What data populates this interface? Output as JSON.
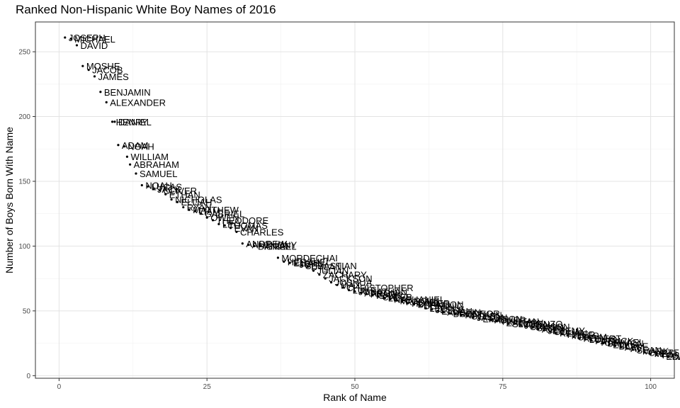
{
  "chart_data": {
    "type": "scatter",
    "title": "Ranked Non-Hispanic White Boy Names of 2016",
    "xlabel": "Rank of Name",
    "ylabel": "Number of Boys Born With Name",
    "xlim": [
      -4,
      104
    ],
    "ylim": [
      -2,
      273
    ],
    "x_ticks": [
      0,
      25,
      50,
      75,
      100
    ],
    "y_ticks": [
      0,
      50,
      100,
      150,
      200,
      250
    ],
    "grid": true,
    "legend": "none",
    "point_color": "#000000",
    "points": [
      {
        "x": 1,
        "y": 261,
        "label": "JOSEPH"
      },
      {
        "x": 2,
        "y": 260,
        "label": "MICHAEL"
      },
      {
        "x": 3,
        "y": 255,
        "label": "DAVID"
      },
      {
        "x": 4,
        "y": 239,
        "label": "MOSHE"
      },
      {
        "x": 5,
        "y": 236,
        "label": "JACOB"
      },
      {
        "x": 6,
        "y": 231,
        "label": "JAMES"
      },
      {
        "x": 7,
        "y": 219,
        "label": "BENJAMIN"
      },
      {
        "x": 8,
        "y": 211,
        "label": "ALEXANDER"
      },
      {
        "x": 9,
        "y": 196,
        "label": "HENRY"
      },
      {
        "x": 9.4,
        "y": 196,
        "label": "DANIEL"
      },
      {
        "x": 10,
        "y": 178,
        "label": "ADAM"
      },
      {
        "x": 11,
        "y": 177,
        "label": "NOAH"
      },
      {
        "x": 11.5,
        "y": 169,
        "label": "WILLIAM"
      },
      {
        "x": 12,
        "y": 163,
        "label": "ABRAHAM"
      },
      {
        "x": 13,
        "y": 156,
        "label": "SAMUEL"
      },
      {
        "x": 14,
        "y": 147,
        "label": "NOAH"
      },
      {
        "x": 15,
        "y": 146,
        "label": "LUCAS"
      },
      {
        "x": 16,
        "y": 144,
        "label": "JACK"
      },
      {
        "x": 17,
        "y": 143,
        "label": "OLIVER"
      },
      {
        "x": 18,
        "y": 140,
        "label": "ETHAN"
      },
      {
        "x": 19,
        "y": 136,
        "label": "NICHOLAS"
      },
      {
        "x": 20,
        "y": 134,
        "label": "ELIJAH"
      },
      {
        "x": 21,
        "y": 130,
        "label": "RYAN"
      },
      {
        "x": 22,
        "y": 128,
        "label": "MATTHEW"
      },
      {
        "x": 23,
        "y": 127,
        "label": "LIAM"
      },
      {
        "x": 24,
        "y": 125,
        "label": "GABRIEL"
      },
      {
        "x": 25,
        "y": 122,
        "label": "OWEN"
      },
      {
        "x": 26,
        "y": 120,
        "label": "THEODORE"
      },
      {
        "x": 27,
        "y": 117,
        "label": "LEO"
      },
      {
        "x": 28,
        "y": 116,
        "label": "THOMAS"
      },
      {
        "x": 29,
        "y": 114,
        "label": "EVAN"
      },
      {
        "x": 30,
        "y": 111,
        "label": "CHARLES"
      },
      {
        "x": 31,
        "y": 102,
        "label": "ANDREW"
      },
      {
        "x": 32,
        "y": 101,
        "label": "ANTHONY"
      },
      {
        "x": 33,
        "y": 100,
        "label": "DANIEL"
      },
      {
        "x": 34,
        "y": 100,
        "label": "ISRAEL"
      },
      {
        "x": 37,
        "y": 91,
        "label": "MORDECHAI"
      },
      {
        "x": 38,
        "y": 88,
        "label": "HERSHEL"
      },
      {
        "x": 39,
        "y": 87,
        "label": "ELIAS"
      },
      {
        "x": 40,
        "y": 86,
        "label": "JOHN"
      },
      {
        "x": 41,
        "y": 85,
        "label": "SEBASTIAN"
      },
      {
        "x": 42,
        "y": 84,
        "label": "DYLAN"
      },
      {
        "x": 43,
        "y": 81,
        "label": "JULIAN"
      },
      {
        "x": 44,
        "y": 78,
        "label": "ZACHARY"
      },
      {
        "x": 45,
        "y": 75,
        "label": "JACKSON"
      },
      {
        "x": 46,
        "y": 72,
        "label": "JOSHUA"
      },
      {
        "x": 47,
        "y": 70,
        "label": "MAX"
      },
      {
        "x": 48,
        "y": 68,
        "label": "CHRISTOPHER"
      },
      {
        "x": 49,
        "y": 66,
        "label": "LUKE"
      },
      {
        "x": 50,
        "y": 65,
        "label": "JONATHAN"
      },
      {
        "x": 51,
        "y": 64,
        "label": "AARON"
      },
      {
        "x": 52,
        "y": 63,
        "label": "FRANK"
      },
      {
        "x": 53,
        "y": 62,
        "label": "ISAAC"
      },
      {
        "x": 54,
        "y": 61,
        "label": "CALEB"
      },
      {
        "x": 55,
        "y": 60,
        "label": "LEVI"
      },
      {
        "x": 56,
        "y": 59,
        "label": "NATHANIEL"
      },
      {
        "x": 57,
        "y": 58,
        "label": "MARCUS"
      },
      {
        "x": 58,
        "y": 57,
        "label": "RAFAEL"
      },
      {
        "x": 59,
        "y": 56,
        "label": "HUNTER"
      },
      {
        "x": 60,
        "y": 55,
        "label": "BRANDON"
      },
      {
        "x": 61,
        "y": 54,
        "label": "DOMINIC"
      },
      {
        "x": 62,
        "y": 52,
        "label": "LEON"
      },
      {
        "x": 63,
        "y": 51,
        "label": "JESSE"
      },
      {
        "x": 64,
        "y": 50,
        "label": "ELIJAH"
      },
      {
        "x": 65,
        "y": 49,
        "label": "AUSTIN"
      },
      {
        "x": 66,
        "y": 48,
        "label": "BRYCE"
      },
      {
        "x": 67,
        "y": 48,
        "label": "CONNOR"
      },
      {
        "x": 68,
        "y": 47,
        "label": "NATHAN"
      },
      {
        "x": 69,
        "y": 46,
        "label": "COLE"
      },
      {
        "x": 70,
        "y": 45,
        "label": "JASON"
      },
      {
        "x": 71,
        "y": 44,
        "label": "ERIC"
      },
      {
        "x": 72,
        "y": 44,
        "label": "MASON"
      },
      {
        "x": 73,
        "y": 43,
        "label": "ASHER"
      },
      {
        "x": 74,
        "y": 42,
        "label": "TRISTAN"
      },
      {
        "x": 75,
        "y": 41,
        "label": "ZALMEN"
      },
      {
        "x": 76,
        "y": 40,
        "label": "SIMON"
      },
      {
        "x": 77,
        "y": 40,
        "label": "LORENZO"
      },
      {
        "x": 78,
        "y": 39,
        "label": "JUDAH"
      },
      {
        "x": 79,
        "y": 38,
        "label": "SAMSON"
      },
      {
        "x": 80,
        "y": 37,
        "label": "GAVIN"
      },
      {
        "x": 81,
        "y": 36,
        "label": "ALEX"
      },
      {
        "x": 82,
        "y": 35,
        "label": "JEREMY"
      },
      {
        "x": 83,
        "y": 34,
        "label": "COLIN"
      },
      {
        "x": 84,
        "y": 33,
        "label": "KEVIN"
      },
      {
        "x": 85,
        "y": 32,
        "label": "TYLER"
      },
      {
        "x": 86,
        "y": 31,
        "label": "MILES"
      },
      {
        "x": 87,
        "y": 30,
        "label": "CHAIM"
      },
      {
        "x": 88,
        "y": 29,
        "label": "ROBERT"
      },
      {
        "x": 89,
        "y": 28,
        "label": "LOUIS"
      },
      {
        "x": 90,
        "y": 27,
        "label": "PATRICK"
      },
      {
        "x": 91,
        "y": 26,
        "label": "RAPHAEL"
      },
      {
        "x": 92,
        "y": 25,
        "label": "SHIMON"
      },
      {
        "x": 93,
        "y": 24,
        "label": "ELI"
      },
      {
        "x": 94,
        "y": 23,
        "label": "BLAKE"
      },
      {
        "x": 95,
        "y": 22,
        "label": "ARI"
      },
      {
        "x": 96,
        "y": 21,
        "label": "AVI"
      },
      {
        "x": 97,
        "y": 20,
        "label": "SEAN"
      },
      {
        "x": 98,
        "y": 19,
        "label": "MARK"
      },
      {
        "x": 99,
        "y": 18,
        "label": "CARTER"
      },
      {
        "x": 100,
        "y": 17,
        "label": "MEIR"
      },
      {
        "x": 101,
        "y": 16,
        "label": "YOSEF"
      },
      {
        "x": 102,
        "y": 15,
        "label": "ELLIOT"
      },
      {
        "x": 103,
        "y": 15,
        "label": "DANIEL"
      }
    ]
  }
}
